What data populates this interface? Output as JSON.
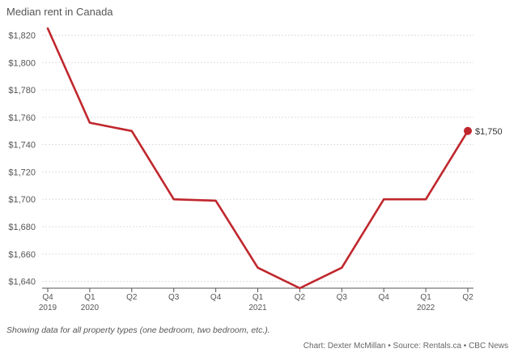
{
  "chart_data": {
    "type": "line",
    "title": "Median rent in Canada",
    "categories": [
      "Q4 2019",
      "Q1 2020",
      "Q2 2020",
      "Q3 2020",
      "Q4 2020",
      "Q1 2021",
      "Q2 2021",
      "Q3 2021",
      "Q4 2021",
      "Q1 2022",
      "Q2 2022"
    ],
    "x_tick_labels": [
      {
        "quarter": "Q4",
        "year": "2019"
      },
      {
        "quarter": "Q1",
        "year": "2020"
      },
      {
        "quarter": "Q2",
        "year": ""
      },
      {
        "quarter": "Q3",
        "year": ""
      },
      {
        "quarter": "Q4",
        "year": ""
      },
      {
        "quarter": "Q1",
        "year": "2021"
      },
      {
        "quarter": "Q2",
        "year": ""
      },
      {
        "quarter": "Q3",
        "year": ""
      },
      {
        "quarter": "Q4",
        "year": ""
      },
      {
        "quarter": "Q1",
        "year": "2022"
      },
      {
        "quarter": "Q2",
        "year": ""
      }
    ],
    "series": [
      {
        "values": [
          1825,
          1756,
          1750,
          1700,
          1699,
          1650,
          1635,
          1650,
          1700,
          1700,
          1750
        ],
        "color": "#c0272d"
      }
    ],
    "ylim": [
      1635,
      1828
    ],
    "y_ticks": [
      {
        "value": 1640,
        "label": "$1,640"
      },
      {
        "value": 1660,
        "label": "$1,660"
      },
      {
        "value": 1680,
        "label": "$1,680"
      },
      {
        "value": 1700,
        "label": "$1,700"
      },
      {
        "value": 1720,
        "label": "$1,720"
      },
      {
        "value": 1740,
        "label": "$1,740"
      },
      {
        "value": 1760,
        "label": "$1,760"
      },
      {
        "value": 1780,
        "label": "$1,780"
      },
      {
        "value": 1800,
        "label": "$1,800"
      },
      {
        "value": 1820,
        "label": "$1,820"
      }
    ],
    "end_label": "$1,750",
    "grid": true,
    "xlabel": "",
    "ylabel": ""
  },
  "note": "Showing data for all property types (one bedroom, two bedroom, etc.).",
  "credit": "Chart: Dexter McMillan • Source: Rentals.ca • CBC News"
}
